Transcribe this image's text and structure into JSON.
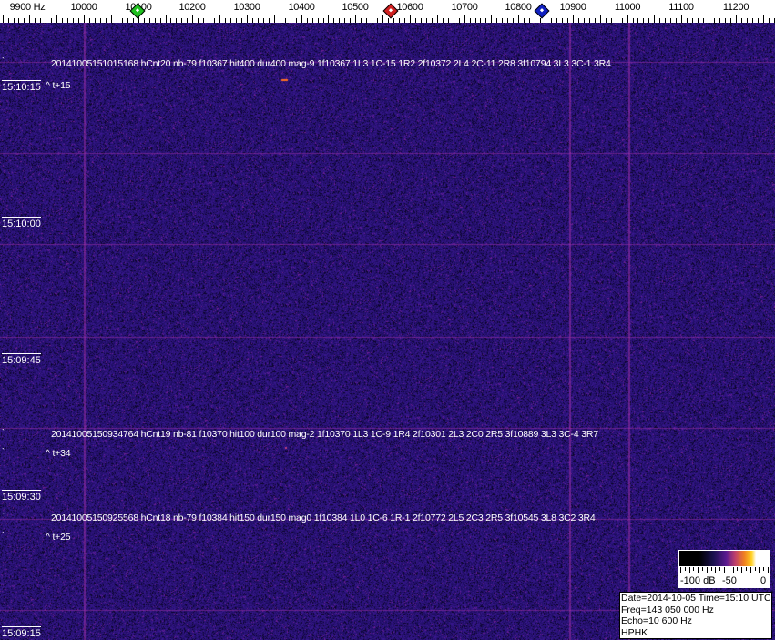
{
  "axis": {
    "labels": [
      "9900 Hz",
      "10000",
      "10100",
      "10200",
      "10300",
      "10400",
      "10500",
      "10600",
      "10700",
      "10800",
      "10900",
      "11000",
      "11100",
      "11200"
    ],
    "markers": [
      {
        "name": "green-marker",
        "color": "#20c020"
      },
      {
        "name": "red-marker",
        "color": "#d02020"
      },
      {
        "name": "blue-marker",
        "color": "#1020c0"
      }
    ]
  },
  "spectrogram": {
    "background": "#1c1470",
    "gridline_color": "#8a2a9a",
    "time_labels": [
      "15:10:15",
      "15:10:00",
      "15:09:45",
      "15:09:30",
      "15:09:15"
    ],
    "events": [
      {
        "text": "20141005151015168 hCnt20 nb-79 f10367 hit400 dur400 mag-9 1f10367 1L3 1C-15 1R2 2f10372 2L4 2C-11 2R8 3f10794 3L3 3C-1 3R4",
        "offset": "^ t+15"
      },
      {
        "text": "20141005150934764 hCnt19 nb-81 f10370 hit100 dur100 mag-2 1f10370 1L3 1C-9 1R4 2f10301 2L3 2C0 2R5 3f10889 3L3 3C-4 3R7",
        "offset": "^ t+34"
      },
      {
        "text": "20141005150925568 hCnt18 nb-79 f10384 hit150 dur150 mag0 1f10384 1L0 1C-6 1R-1 2f10772 2L5 2C3 2R5 3f10545 3L8 3C2 3R4",
        "offset": "^ t+25"
      }
    ],
    "tick_glyph": "`"
  },
  "color_scale": {
    "labels": [
      "-100 dB",
      "-50",
      "0"
    ]
  },
  "info": {
    "date_time": "Date=2014-10-05 Time=15:10 UTC",
    "freq": "Freq=143 050 000 Hz",
    "echo": "Echo=10 600 Hz",
    "station": "HPHK"
  }
}
